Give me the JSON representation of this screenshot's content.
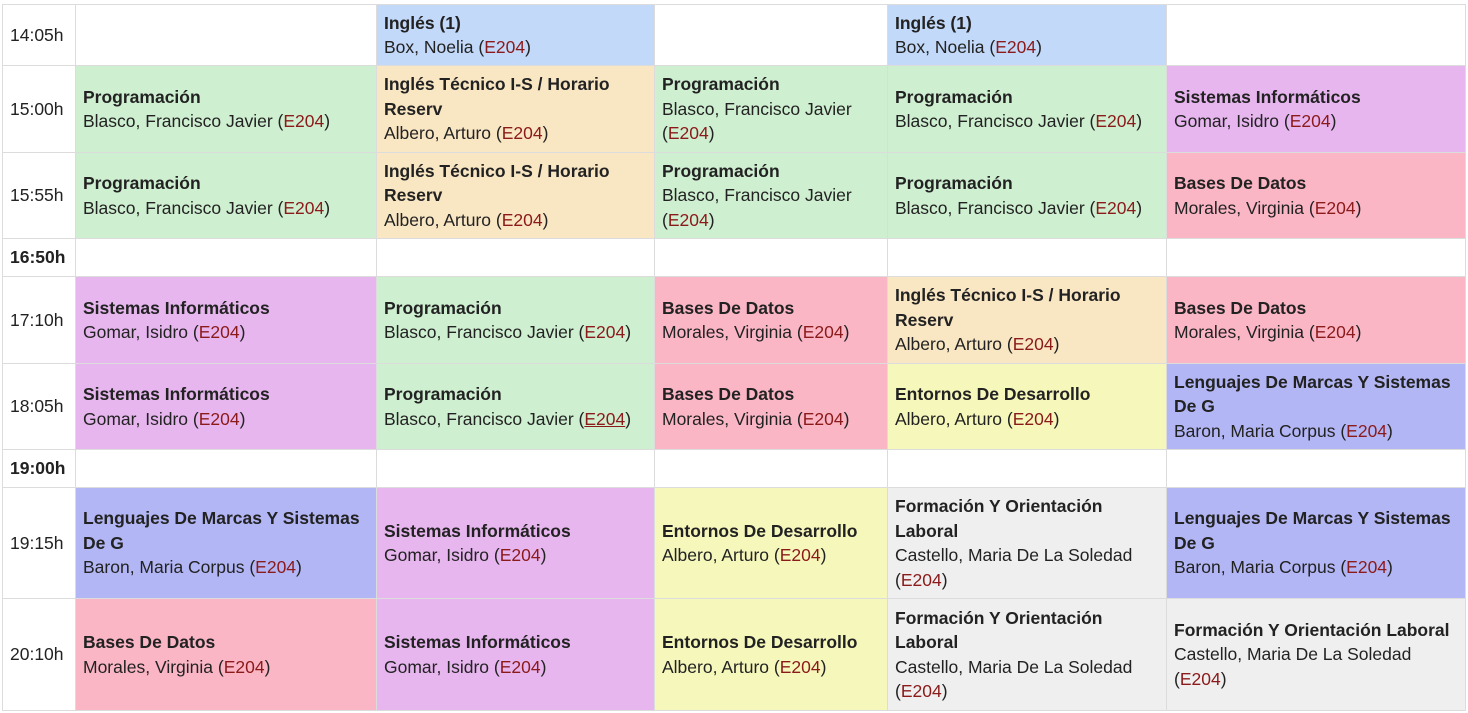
{
  "timetable": {
    "rows": [
      {
        "time": "14:05h",
        "type": "slot",
        "cells": [
          {
            "subject": "",
            "teacher": "",
            "room": "",
            "color": "empty"
          },
          {
            "subject": "Inglés (1)",
            "teacher": "Box, Noelia",
            "room": "E204",
            "color": "lblue"
          },
          {
            "subject": "",
            "teacher": "",
            "room": "",
            "color": "empty"
          },
          {
            "subject": "Inglés (1)",
            "teacher": "Box, Noelia",
            "room": "E204",
            "color": "lblue"
          },
          {
            "subject": "",
            "teacher": "",
            "room": "",
            "color": "empty"
          }
        ]
      },
      {
        "time": "15:00h",
        "type": "slot",
        "cells": [
          {
            "subject": "Programación",
            "teacher": "Blasco, Francisco Javier",
            "room": "E204",
            "color": "green"
          },
          {
            "subject": "Inglés Técnico I-S / Horario Reserv",
            "teacher": "Albero, Arturo",
            "room": "E204",
            "color": "orange"
          },
          {
            "subject": "Programación",
            "teacher": "Blasco, Francisco Javier",
            "room": "E204",
            "color": "green"
          },
          {
            "subject": "Programación",
            "teacher": "Blasco, Francisco Javier",
            "room": "E204",
            "color": "green"
          },
          {
            "subject": "Sistemas Informáticos",
            "teacher": "Gomar, Isidro",
            "room": "E204",
            "color": "purple"
          }
        ]
      },
      {
        "time": "15:55h",
        "type": "slot",
        "cells": [
          {
            "subject": "Programación",
            "teacher": "Blasco, Francisco Javier",
            "room": "E204",
            "color": "green"
          },
          {
            "subject": "Inglés Técnico I-S / Horario Reserv",
            "teacher": "Albero, Arturo",
            "room": "E204",
            "color": "orange"
          },
          {
            "subject": "Programación",
            "teacher": "Blasco, Francisco Javier",
            "room": "E204",
            "color": "green"
          },
          {
            "subject": "Programación",
            "teacher": "Blasco, Francisco Javier",
            "room": "E204",
            "color": "green"
          },
          {
            "subject": "Bases De Datos",
            "teacher": "Morales, Virginia",
            "room": "E204",
            "color": "pink"
          }
        ]
      },
      {
        "time": "16:50h",
        "type": "break",
        "cells": []
      },
      {
        "time": "17:10h",
        "type": "slot",
        "cells": [
          {
            "subject": "Sistemas Informáticos",
            "teacher": "Gomar, Isidro",
            "room": "E204",
            "color": "purple"
          },
          {
            "subject": "Programación",
            "teacher": "Blasco, Francisco Javier",
            "room": "E204",
            "color": "green"
          },
          {
            "subject": "Bases De Datos",
            "teacher": "Morales, Virginia",
            "room": "E204",
            "color": "pink"
          },
          {
            "subject": "Inglés Técnico I-S / Horario Reserv",
            "teacher": "Albero, Arturo",
            "room": "E204",
            "color": "orange"
          },
          {
            "subject": "Bases De Datos",
            "teacher": "Morales, Virginia",
            "room": "E204",
            "color": "pink"
          }
        ]
      },
      {
        "time": "18:05h",
        "type": "slot",
        "cells": [
          {
            "subject": "Sistemas Informáticos",
            "teacher": "Gomar, Isidro",
            "room": "E204",
            "color": "purple"
          },
          {
            "subject": "Programación",
            "teacher": "Blasco, Francisco Javier",
            "room": "E204",
            "color": "green",
            "room_underlined": true
          },
          {
            "subject": "Bases De Datos",
            "teacher": "Morales, Virginia",
            "room": "E204",
            "color": "pink"
          },
          {
            "subject": "Entornos De Desarrollo",
            "teacher": "Albero, Arturo",
            "room": "E204",
            "color": "yellow"
          },
          {
            "subject": "Lenguajes De Marcas Y Sistemas De G",
            "teacher": "Baron, Maria Corpus",
            "room": "E204",
            "color": "blue"
          }
        ]
      },
      {
        "time": "19:00h",
        "type": "break",
        "cells": []
      },
      {
        "time": "19:15h",
        "type": "slot",
        "cells": [
          {
            "subject": "Lenguajes De Marcas Y Sistemas De G",
            "teacher": "Baron, Maria Corpus",
            "room": "E204",
            "color": "blue"
          },
          {
            "subject": "Sistemas Informáticos",
            "teacher": "Gomar, Isidro",
            "room": "E204",
            "color": "purple"
          },
          {
            "subject": "Entornos De Desarrollo",
            "teacher": "Albero, Arturo",
            "room": "E204",
            "color": "yellow"
          },
          {
            "subject": "Formación Y Orientación Laboral",
            "teacher": "Castello, Maria De La Soledad",
            "room": "E204",
            "color": "gray"
          },
          {
            "subject": "Lenguajes De Marcas Y Sistemas De G",
            "teacher": "Baron, Maria Corpus",
            "room": "E204",
            "color": "blue"
          }
        ]
      },
      {
        "time": "20:10h",
        "type": "slot",
        "cells": [
          {
            "subject": "Bases De Datos",
            "teacher": "Morales, Virginia",
            "room": "E204",
            "color": "pink"
          },
          {
            "subject": "Sistemas Informáticos",
            "teacher": "Gomar, Isidro",
            "room": "E204",
            "color": "purple"
          },
          {
            "subject": "Entornos De Desarrollo",
            "teacher": "Albero, Arturo",
            "room": "E204",
            "color": "yellow"
          },
          {
            "subject": "Formación Y Orientación Laboral",
            "teacher": "Castello, Maria De La Soledad",
            "room": "E204",
            "color": "gray"
          },
          {
            "subject": "Formación Y Orientación Laboral",
            "teacher": "Castello, Maria De La Soledad",
            "room": "E204",
            "color": "gray"
          }
        ]
      }
    ]
  },
  "colors": {
    "green": "#cfefd1",
    "orange": "#f9e6c3",
    "purple": "#e7b6ef",
    "pink": "#fbb6c6",
    "yellow": "#f6f7bb",
    "blue": "#b3b6f5",
    "gray": "#efefef",
    "lblue": "#c3d9f9",
    "empty": "#ffffff",
    "room_text": "#8b1a1a"
  }
}
